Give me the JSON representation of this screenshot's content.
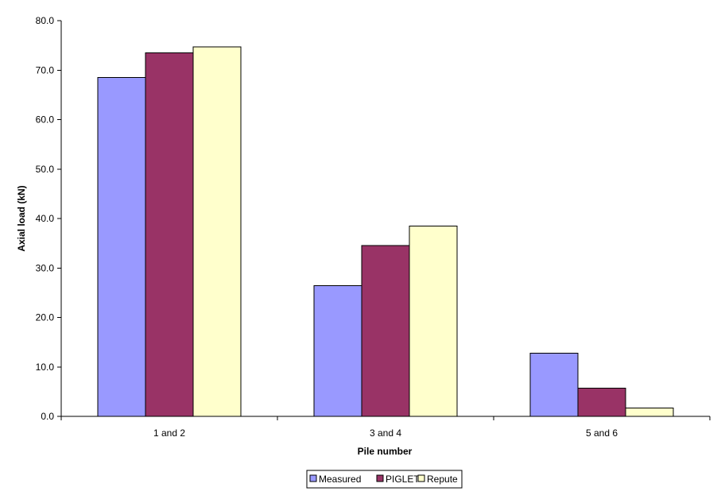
{
  "chart_data": {
    "type": "bar",
    "title": "",
    "xlabel": "Pile number",
    "ylabel": "Axial load (kN)",
    "categories": [
      "1 and 2",
      "3 and 4",
      "5 and 6"
    ],
    "series": [
      {
        "name": "Measured",
        "color": "#9999ff",
        "values": [
          68.5,
          26.4,
          12.8
        ]
      },
      {
        "name": "PIGLET",
        "color": "#993366",
        "values": [
          73.5,
          34.5,
          5.7
        ]
      },
      {
        "name": "Repute",
        "color": "#ffffcc",
        "values": [
          74.7,
          38.5,
          1.7
        ]
      }
    ],
    "ylim": [
      0,
      80
    ],
    "ytick_labels": [
      "0.0",
      "10.0",
      "20.0",
      "30.0",
      "40.0",
      "50.0",
      "60.0",
      "70.0",
      "80.0"
    ],
    "grid": false,
    "legend_position": "bottom"
  }
}
